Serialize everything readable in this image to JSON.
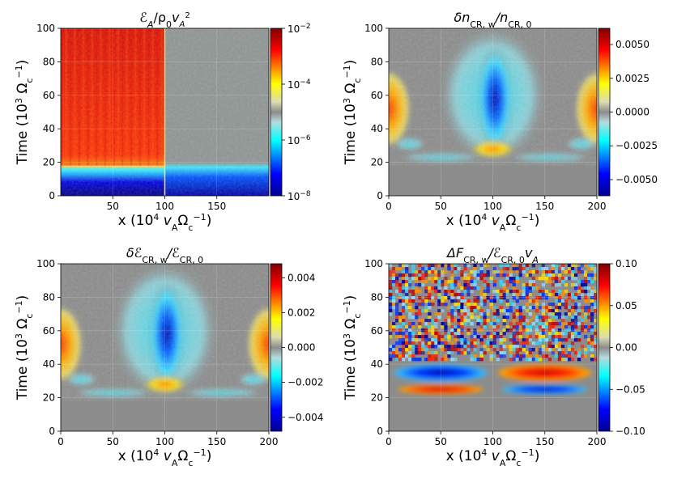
{
  "chart_data": [
    {
      "type": "heatmap",
      "panel": "top-left",
      "title": "ℰA/ρ0vA2",
      "title_parts": {
        "a": "ℰ",
        "b": "A",
        "c": "/ρ",
        "d": "0",
        "e": "v",
        "f": "A",
        "g": "2"
      },
      "xlabel": "x (10⁴ vAΩc⁻¹)",
      "ylabel": "Time (10³ Ωc⁻¹)",
      "xlim": [
        0,
        200
      ],
      "ylim": [
        0,
        100
      ],
      "xticks": [
        "50",
        "100",
        "150"
      ],
      "yticks": [
        "0",
        "20",
        "40",
        "60",
        "80",
        "100"
      ],
      "colorbar": {
        "scale": "log",
        "range": [
          1e-08,
          0.01
        ],
        "ticks": [
          "10⁻⁸",
          "10⁻⁶",
          "10⁻⁴",
          "10⁻²"
        ]
      },
      "features": [
        {
          "region": "x 0–100, t 0–10",
          "level": "1e-8 (blue)"
        },
        {
          "region": "x 0–100, t 12–16",
          "level": "1e-6 (cyan)"
        },
        {
          "region": "x 0–100, t 18–100",
          "level": "1e-3 to 1e-2 (red)"
        },
        {
          "region": "x 100–200, t 0–18",
          "level": "1e-7 (blue)"
        },
        {
          "region": "x 100–200, t 20–100",
          "level": "1e-5 (grey)"
        }
      ]
    },
    {
      "type": "heatmap",
      "panel": "top-right",
      "title": "δnCR,w/nCR,0",
      "xlabel": "x (10⁴ vAΩc⁻¹)",
      "ylabel": "Time (10³ Ωc⁻¹)",
      "xlim": [
        0,
        200
      ],
      "ylim": [
        0,
        100
      ],
      "xticks": [
        "0",
        "50",
        "100",
        "150",
        "200"
      ],
      "yticks": [
        "0",
        "20",
        "40",
        "60",
        "80",
        "100"
      ],
      "colorbar": {
        "scale": "linear",
        "range": [
          -0.0062,
          0.0062
        ],
        "ticks": [
          "0.0050",
          "0.0025",
          "0.0000",
          "−0.0025",
          "−0.0050"
        ],
        "tick_values": [
          0.005,
          0.0025,
          0,
          -0.0025,
          -0.005
        ]
      },
      "features": [
        {
          "region": "x ≈ 0 and 200, t 40–70",
          "level": "+0.003"
        },
        {
          "region": "x ≈ 100, t 40–90",
          "level": "−0.006"
        },
        {
          "region": "x ≈ 100, t ≈ 28",
          "level": "+0.004"
        },
        {
          "region": "all x, t 0–20",
          "level": "0"
        }
      ]
    },
    {
      "type": "heatmap",
      "panel": "bottom-left",
      "title": "δℰCR,w/ℰCR,0",
      "xlabel": "x (10⁴ vAΩc⁻¹)",
      "ylabel": "Time (10³ Ωc⁻¹)",
      "xlim": [
        0,
        200
      ],
      "ylim": [
        0,
        100
      ],
      "xticks": [
        "0",
        "50",
        "100",
        "150",
        "200"
      ],
      "yticks": [
        "0",
        "20",
        "40",
        "60",
        "80",
        "100"
      ],
      "colorbar": {
        "scale": "linear",
        "range": [
          -0.0048,
          0.0048
        ],
        "ticks": [
          "0.004",
          "0.002",
          "0.000",
          "−0.002",
          "−0.004"
        ],
        "tick_values": [
          0.004,
          0.002,
          0,
          -0.002,
          -0.004
        ]
      },
      "features": [
        {
          "region": "x ≈ 0 and 200, t 40–60",
          "level": "+0.003"
        },
        {
          "region": "x ≈ 100, t 40–80",
          "level": "−0.004"
        },
        {
          "region": "x ≈ 100, t ≈ 27",
          "level": "+0.0025"
        },
        {
          "region": "all x, t 0–20",
          "level": "0"
        }
      ]
    },
    {
      "type": "heatmap",
      "panel": "bottom-right",
      "title": "ΔFCR,w/ℰCR,0vA",
      "xlabel": "x (10⁴ vAΩc⁻¹)",
      "ylabel": "Time (10³ Ωc⁻¹)",
      "xlim": [
        0,
        200
      ],
      "ylim": [
        0,
        100
      ],
      "xticks": [
        "0",
        "50",
        "100",
        "150",
        "200"
      ],
      "yticks": [
        "0",
        "20",
        "40",
        "60",
        "80",
        "100"
      ],
      "colorbar": {
        "scale": "linear",
        "range": [
          -0.1,
          0.1
        ],
        "ticks": [
          "0.10",
          "0.05",
          "0.00",
          "−0.05",
          "−0.10"
        ],
        "tick_values": [
          0.1,
          0.05,
          0,
          -0.05,
          -0.1
        ]
      },
      "features": [
        {
          "region": "x 0–100, t 30–40",
          "level": "−0.09"
        },
        {
          "region": "x 0–100, t 22–28",
          "level": "+0.07"
        },
        {
          "region": "x 100–200, t 30–40",
          "level": "+0.09"
        },
        {
          "region": "x 100–200, t 22–28",
          "level": "−0.07"
        },
        {
          "region": "all x, t 45–100",
          "level": "noise ±0.1"
        },
        {
          "region": "all x, t 0–20",
          "level": "0"
        }
      ]
    }
  ],
  "labels": {
    "time_label": "Time (10",
    "time_sup": "3",
    "omega": " Ω",
    "c": "c",
    "minus1": "−1",
    "close": ")",
    "x_open": "x (10",
    "x_sup": "4",
    "x_v": " v",
    "x_A": "A",
    "x_omega": "Ω",
    "x_c": "c",
    "x_m1": "−1",
    "x_close": ")",
    "cb1_base": "10",
    "cb1_exp": [
      "−8",
      "−6",
      "−4",
      "−2"
    ],
    "t2": {
      "a": "δn",
      "b": "CR, w",
      "c": "/n",
      "d": "CR, 0"
    },
    "t3": {
      "a": "δℰ",
      "b": "CR, w",
      "c": "/ℰ",
      "d": "CR, 0"
    },
    "t4": {
      "a": "ΔF",
      "b": "CR, w",
      "c": "/ℰ",
      "d": "CR, 0",
      "e": "v",
      "f": "A"
    }
  }
}
